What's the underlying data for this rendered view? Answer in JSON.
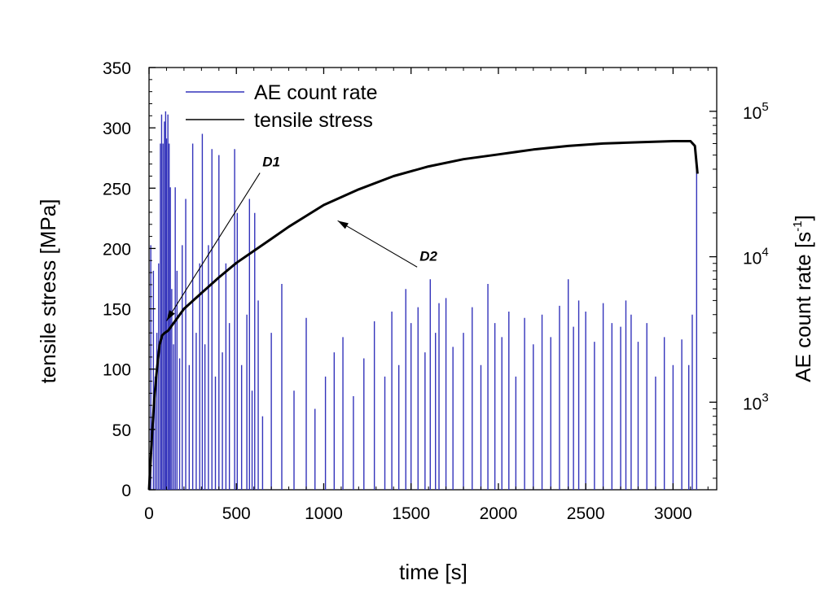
{
  "chart_data": {
    "type": "line",
    "title": "",
    "xlabel": "time [s]",
    "ylabel_left": "tensile stress [MPa]",
    "ylabel_right_base": "AE count rate [s",
    "ylabel_right_sup": "-1",
    "ylabel_right_close": "]",
    "xlim": [
      0,
      3250
    ],
    "ylim_left": [
      0,
      350
    ],
    "ylim_right_log": [
      250,
      200000
    ],
    "x_ticks": [
      0,
      500,
      1000,
      1500,
      2000,
      2500,
      3000
    ],
    "x_tick_labels": [
      "0",
      "500",
      "1000",
      "1500",
      "2000",
      "2500",
      "3000"
    ],
    "y_left_ticks": [
      0,
      50,
      100,
      150,
      200,
      250,
      300,
      350
    ],
    "y_left_tick_labels": [
      "0",
      "50",
      "100",
      "150",
      "200",
      "250",
      "300",
      "350"
    ],
    "y_right_ticks": [
      1000,
      10000,
      100000
    ],
    "y_right_tick_base": "10",
    "y_right_tick_exps": [
      "3",
      "4",
      "5"
    ],
    "legend": {
      "position": "top-left",
      "entries": [
        "AE count rate",
        "tensile stress"
      ]
    },
    "series": [
      {
        "name": "tensile stress",
        "axis": "left",
        "color": "#000000",
        "x": [
          0,
          15,
          30,
          45,
          60,
          75,
          90,
          110,
          150,
          200,
          300,
          400,
          500,
          600,
          700,
          800,
          900,
          1000,
          1200,
          1400,
          1600,
          1800,
          2000,
          2200,
          2400,
          2600,
          2800,
          3000,
          3100,
          3125,
          3140
        ],
        "y": [
          0,
          40,
          75,
          100,
          120,
          128,
          130,
          132,
          140,
          150,
          163,
          176,
          188,
          198,
          208,
          218,
          227,
          236,
          249,
          260,
          268,
          274,
          278,
          282,
          285,
          287,
          288,
          289,
          289,
          285,
          262
        ]
      },
      {
        "name": "AE count rate",
        "axis": "right",
        "color": "#3333bb",
        "x": [
          10,
          25,
          35,
          45,
          55,
          65,
          72,
          80,
          88,
          95,
          100,
          108,
          115,
          122,
          130,
          140,
          150,
          160,
          175,
          190,
          210,
          230,
          250,
          270,
          290,
          305,
          320,
          340,
          360,
          380,
          400,
          420,
          440,
          460,
          490,
          505,
          530,
          560,
          575,
          590,
          605,
          625,
          650,
          700,
          760,
          830,
          900,
          950,
          1010,
          1060,
          1110,
          1170,
          1230,
          1290,
          1350,
          1390,
          1430,
          1470,
          1500,
          1540,
          1580,
          1610,
          1640,
          1660,
          1700,
          1740,
          1800,
          1850,
          1900,
          1940,
          1980,
          2020,
          2060,
          2100,
          2150,
          2200,
          2250,
          2300,
          2350,
          2400,
          2430,
          2460,
          2500,
          2550,
          2600,
          2650,
          2700,
          2730,
          2760,
          2800,
          2850,
          2900,
          2950,
          3000,
          3050,
          3090,
          3110,
          3135
        ],
        "y": [
          12000,
          8000,
          1500,
          3000,
          9000,
          60000,
          95000,
          60000,
          85000,
          100000,
          65000,
          95000,
          60000,
          30000,
          6000,
          2500,
          30000,
          8000,
          2000,
          12000,
          25000,
          1800,
          60000,
          3000,
          9000,
          70000,
          2500,
          12000,
          55000,
          1500,
          50000,
          2200,
          9000,
          3500,
          55000,
          20000,
          1800,
          4000,
          25000,
          1200,
          20000,
          5000,
          800,
          3000,
          6500,
          1200,
          3800,
          900,
          1500,
          2200,
          2800,
          1100,
          2000,
          3600,
          1500,
          4200,
          1800,
          6000,
          3500,
          4500,
          2200,
          7000,
          3000,
          4800,
          5200,
          2400,
          3000,
          4500,
          1800,
          6500,
          3500,
          2800,
          4200,
          1500,
          3800,
          2500,
          4000,
          2800,
          4600,
          7000,
          3300,
          5000,
          4200,
          2600,
          4800,
          3500,
          3300,
          5000,
          4000,
          2600,
          3500,
          1500,
          2800,
          1800,
          2700,
          1800,
          4000,
          45000
        ]
      }
    ],
    "annotations": [
      {
        "text": "D1",
        "x": 700,
        "y": 268,
        "arrow_to_x": 100,
        "arrow_to_y": 140
      },
      {
        "text": "D2",
        "x": 1600,
        "y": 190,
        "arrow_to_x": 1080,
        "arrow_to_y": 223
      }
    ]
  }
}
